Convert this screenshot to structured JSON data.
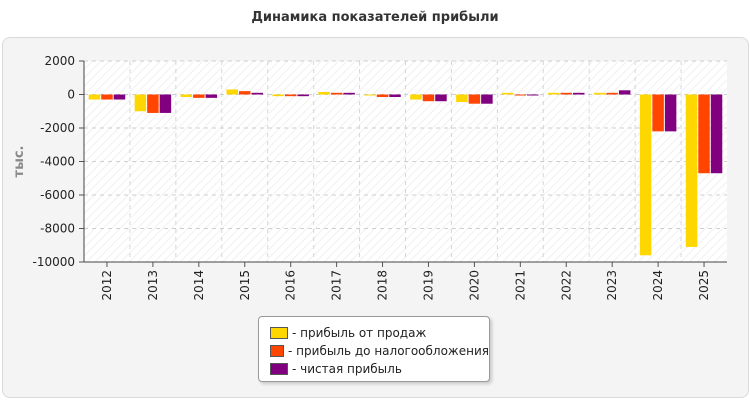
{
  "page": {
    "title": "Динамика показателей прибыли"
  },
  "chart_data": {
    "type": "bar",
    "title": "Динамика показателей прибыли",
    "ylabel": "тыс.",
    "xlabel": "",
    "ylim": [
      -10000,
      2000
    ],
    "yticks": [
      2000,
      0,
      -2000,
      -4000,
      -6000,
      -8000,
      -10000
    ],
    "grid": true,
    "legend_position": "bottom",
    "categories": [
      "2012",
      "2013",
      "2014",
      "2015",
      "2016",
      "2017",
      "2018",
      "2019",
      "2020",
      "2021",
      "2022",
      "2023",
      "2024",
      "2025"
    ],
    "series": [
      {
        "name": "- прибыль от продаж",
        "color": "#ffd700",
        "values": [
          -300,
          -1000,
          -150,
          300,
          -100,
          150,
          -50,
          -300,
          -450,
          100,
          100,
          100,
          -9600,
          -9100
        ]
      },
      {
        "name": "- прибыль до налогообложения",
        "color": "#ff4500",
        "values": [
          -300,
          -1100,
          -200,
          200,
          -100,
          100,
          -150,
          -400,
          -550,
          -50,
          100,
          100,
          -2200,
          -4700
        ]
      },
      {
        "name": "- чистая прибыль",
        "color": "#800080",
        "values": [
          -300,
          -1100,
          -200,
          100,
          -100,
          100,
          -150,
          -400,
          -550,
          -50,
          100,
          250,
          -2200,
          -4700
        ]
      }
    ]
  }
}
